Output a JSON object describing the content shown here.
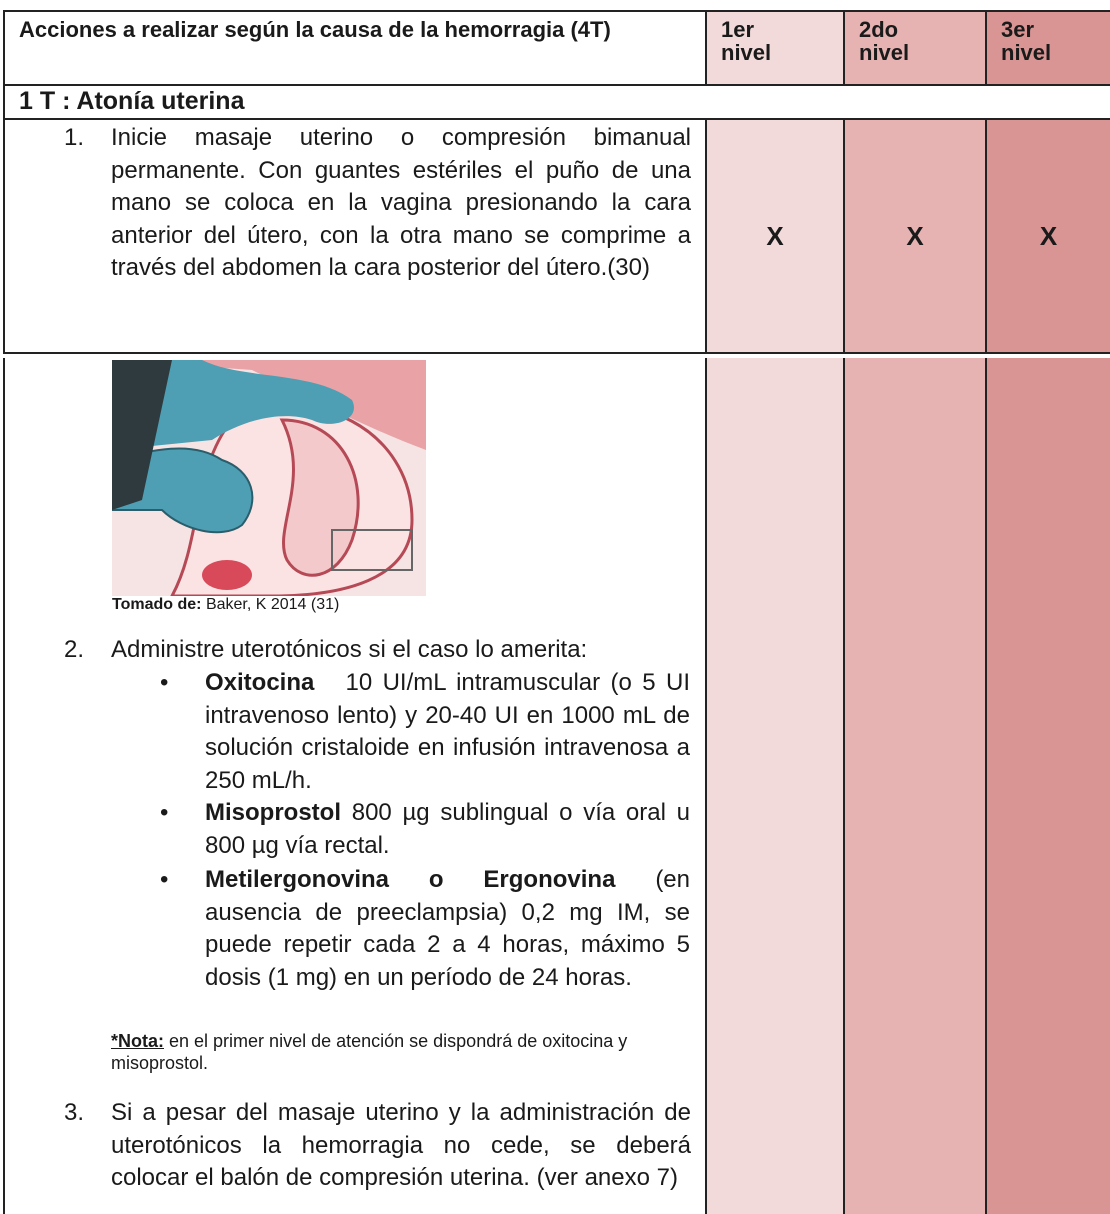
{
  "table": {
    "header": [
      "Acciones a realizar según la causa de la hemorragia (4T)",
      "1er nivel",
      "2do nivel",
      "3er nivel"
    ],
    "section": "1 T : Atonía uterina",
    "rows": [
      {
        "number": "1.",
        "text": "Inicie masaje uterino o compresión bimanual permanente. Con guantes estériles el puño de una mano se coloca en la vagina presionando la cara anterior del útero, con la otra mano se comprime a través del abdomen la cara posterior del útero.(30)",
        "marks": [
          "X",
          "X",
          "X"
        ]
      }
    ]
  },
  "figure": {
    "caption_label": "Tomado de:",
    "caption_text": "Baker, K 2014 (31)"
  },
  "items": [
    {
      "number": "2.",
      "text": "Administre uterotónicos si el caso lo amerita:",
      "bullets": [
        {
          "term": "Oxitocina",
          "text": "10 UI/mL intramuscular (o 5 UI intravenoso lento) y 20-40 UI en 1000 mL de solución cristaloide en infusión intravenosa a 250 mL/h."
        },
        {
          "term": "Misoprostol",
          "text": "800 µg sublingual o vía oral u 800 µg vía rectal."
        },
        {
          "term": "Metilergonovina o Ergonovina",
          "text": "(en ausencia de preeclampsia) 0,2 mg IM, se puede repetir cada 2 a 4 horas, máximo 5 dosis (1 mg) en un período de 24 horas."
        }
      ],
      "note_label": "*Nota:",
      "note_text": "en el primer nivel de atención se dispondrá de oxitocina y misoprostol."
    },
    {
      "number": "3.",
      "text": "Si a pesar del masaje uterino y la administración de uterotónicos la hemorragia no cede, se deberá colocar el balón de compresión uterina. (ver anexo 7)"
    }
  ]
}
